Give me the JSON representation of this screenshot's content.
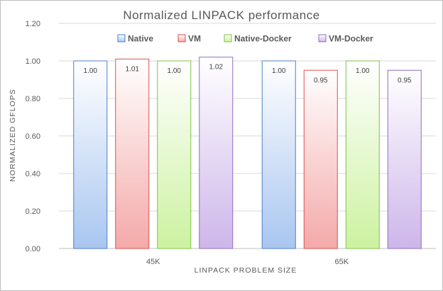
{
  "chart_data": {
    "type": "bar",
    "title": "Normalized  LINPACK  performance",
    "xlabel": "LINPACK  PROBLEM  SIZE",
    "ylabel": "NORMALIZED  GFLOPS",
    "categories": [
      "45K",
      "65K"
    ],
    "series": [
      {
        "name": "Native",
        "values": [
          1.0,
          1.0
        ],
        "labels": [
          "1.00",
          "1.00"
        ],
        "color": "#a9c6f0",
        "stroke": "#4f7fd0"
      },
      {
        "name": "VM",
        "values": [
          1.01,
          0.95
        ],
        "labels": [
          "1.01",
          "0.95"
        ],
        "color": "#f4a9a9",
        "stroke": "#d9534f"
      },
      {
        "name": "Native-Docker",
        "values": [
          1.0,
          1.0
        ],
        "labels": [
          "1.00",
          "1.00"
        ],
        "color": "#ccf2a0",
        "stroke": "#7fc04a"
      },
      {
        "name": "VM-Docker",
        "values": [
          1.02,
          0.95
        ],
        "labels": [
          "1.02",
          "0.95"
        ],
        "color": "#cdb6ea",
        "stroke": "#8f6fc0"
      }
    ],
    "ylim": [
      0,
      1.2
    ],
    "yticks": [
      "0.00",
      "0.20",
      "0.40",
      "0.60",
      "0.80",
      "1.00",
      "1.20"
    ],
    "grid": true,
    "legend": "top-center"
  }
}
